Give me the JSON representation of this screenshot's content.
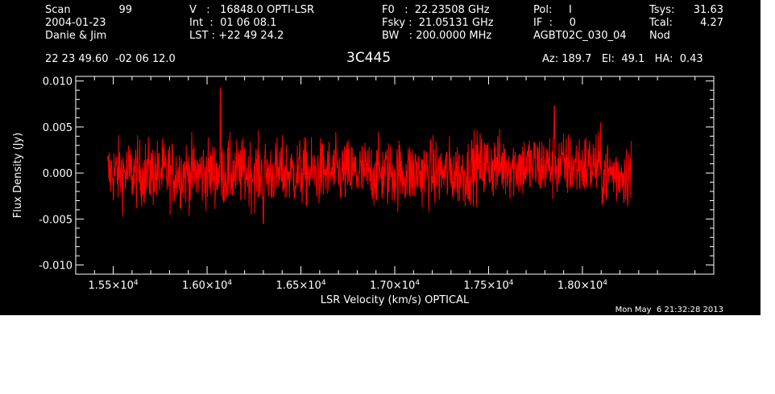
{
  "header": {
    "col1": [
      "Scan",
      "2004-01-23",
      "Danie & Jim"
    ],
    "scan_number": "99",
    "col2": [
      "V   :   16848.0 OPTI-LSR",
      "Int  :  01 06 08.1",
      "LST : +22 49 24.2"
    ],
    "col3": [
      "F0   :  22.23508 GHz",
      "Fsky :  21.05131 GHz",
      "BW   : 200.0000 MHz"
    ],
    "col4": [
      "Pol:     I",
      "IF  :     0",
      "AGBT02C_030_04"
    ],
    "col5_labels": [
      "Tsys:",
      "Tcal:",
      "Nod"
    ],
    "col5_values": [
      "31.63",
      "4.27",
      ""
    ],
    "coords": "22 23 49.60  -02 06 12.0",
    "source": "3C445",
    "az_el_ha": "Az: 189.7   El:  49.1   HA:  0.43",
    "timestamp": "Mon May  6 21:32:28 2013"
  },
  "chart_data": {
    "type": "line",
    "xlabel": "LSR Velocity (km/s) OPTICAL",
    "ylabel": "Flux Density (Jy)",
    "xlim": [
      15300,
      18700
    ],
    "ylim": [
      -0.011,
      0.0105
    ],
    "x_ticks": [
      15500,
      16000,
      16500,
      17000,
      17500,
      18000
    ],
    "x_tick_labels": [
      {
        "mant": "1.55×10",
        "exp": "4"
      },
      {
        "mant": "1.60×10",
        "exp": "4"
      },
      {
        "mant": "1.65×10",
        "exp": "4"
      },
      {
        "mant": "1.70×10",
        "exp": "4"
      },
      {
        "mant": "1.75×10",
        "exp": "4"
      },
      {
        "mant": "1.80×10",
        "exp": "4"
      }
    ],
    "y_ticks": [
      -0.01,
      -0.005,
      0.0,
      0.005,
      0.01
    ],
    "y_tick_labels": [
      "-0.010",
      "-0.005",
      "0.000",
      "0.005",
      "0.010"
    ],
    "series": [
      {
        "color": "#ff0000",
        "x_range": [
          15470,
          18260
        ],
        "noise_sigma": 0.0018,
        "baseline": 0.0,
        "peaks": [
          [
            16070,
            0.0092
          ],
          [
            17850,
            0.0073
          ],
          [
            16300,
            -0.0055
          ]
        ]
      }
    ],
    "grid": false
  },
  "colors": {
    "background": "#000000",
    "axes": "#ffffff",
    "trace": "#ff0000"
  }
}
